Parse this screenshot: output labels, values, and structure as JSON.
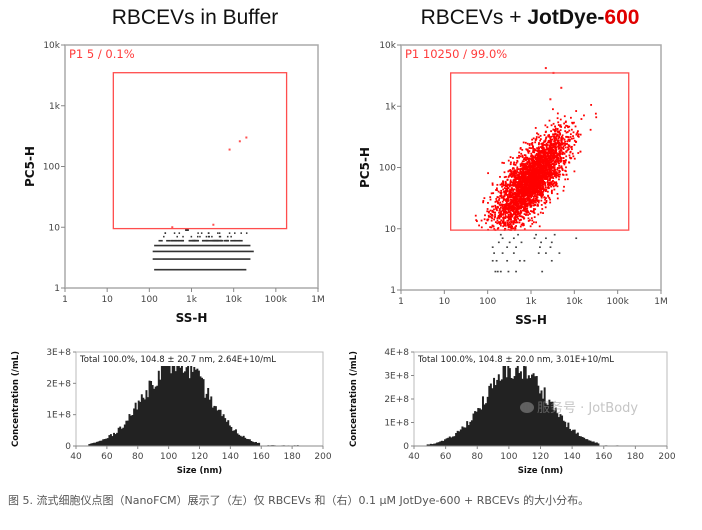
{
  "chart_data": [
    {
      "type": "scatter",
      "id": "left-scatter",
      "title": "RBCEVs in Buffer",
      "xlabel": "SS-H",
      "ylabel": "PC5-H",
      "xscale": "log",
      "yscale": "log",
      "xlim": [
        1,
        1000000
      ],
      "ylim": [
        1,
        10000
      ],
      "xticks": [
        "1",
        "10",
        "100",
        "1k",
        "10k",
        "100k",
        "1M"
      ],
      "xtick_values": [
        1,
        10,
        100,
        1000,
        10000,
        100000,
        1000000
      ],
      "yticks": [
        "1",
        "10",
        "100",
        "1k",
        "10k"
      ],
      "ytick_values": [
        1,
        10,
        100,
        1000,
        10000
      ],
      "gate": {
        "name": "P1",
        "label": "P1  5 / 0.1%",
        "x_range": [
          14,
          180000
        ],
        "y_range": [
          9.5,
          3500
        ],
        "color": "#ff4d4d"
      },
      "gated_points": [
        [
          8000,
          190
        ],
        [
          14000,
          260
        ],
        [
          20000,
          300
        ],
        [
          350,
          10
        ],
        [
          3300,
          11
        ]
      ],
      "ungated_rows": [
        {
          "y": 2,
          "x_range": [
            130,
            20000
          ],
          "density": "dense"
        },
        {
          "y": 3,
          "x_range": [
            120,
            25000
          ],
          "density": "dense"
        },
        {
          "y": 4,
          "x_range": [
            120,
            30000
          ],
          "density": "dense"
        },
        {
          "y": 5,
          "x_range": [
            130,
            25000
          ],
          "density": "dense"
        },
        {
          "y": 6,
          "x_range": [
            150,
            15000
          ],
          "density": "medium"
        },
        {
          "y": 7,
          "x_range": [
            200,
            10000
          ],
          "density": "sparse"
        },
        {
          "y": 8,
          "x_range": [
            150,
            20000
          ],
          "density": "sparse"
        },
        {
          "y": 9,
          "x_range": [
            700,
            800
          ],
          "density": "sparse"
        }
      ]
    },
    {
      "type": "scatter",
      "id": "right-scatter",
      "title": "RBCEVs + JotDye-600",
      "title_parts": {
        "plain": "RBCEVs + ",
        "bold": "JotDye-",
        "red": "600"
      },
      "xlabel": "SS-H",
      "ylabel": "PC5-H",
      "xscale": "log",
      "yscale": "log",
      "xlim": [
        1,
        1000000
      ],
      "ylim": [
        1,
        10000
      ],
      "xticks": [
        "1",
        "10",
        "100",
        "1k",
        "10k",
        "100k",
        "1M"
      ],
      "xtick_values": [
        1,
        10,
        100,
        1000,
        10000,
        100000,
        1000000
      ],
      "yticks": [
        "1",
        "10",
        "100",
        "1k",
        "10k"
      ],
      "ytick_values": [
        1,
        10,
        100,
        1000,
        10000
      ],
      "gate": {
        "name": "P1",
        "label": "P1  10250 / 99.0%",
        "x_range": [
          14,
          180000
        ],
        "y_range": [
          9.5,
          3500
        ],
        "color": "#ff4d4d"
      },
      "cluster": {
        "center_x": 1000,
        "center_y": 60,
        "log_sd_x": 0.42,
        "log_sd_y": 0.38,
        "correlation": 0.75,
        "count": 10250,
        "color": "#ff0000"
      },
      "outliers": [
        [
          3300,
          3500
        ],
        [
          5000,
          2000
        ],
        [
          2800,
          1300
        ],
        [
          2200,
          4200
        ]
      ],
      "ungated_points": [
        [
          150,
          2
        ],
        [
          170,
          2
        ],
        [
          200,
          2
        ],
        [
          300,
          2
        ],
        [
          450,
          2
        ],
        [
          1800,
          2
        ],
        [
          130,
          3
        ],
        [
          160,
          3
        ],
        [
          280,
          3
        ],
        [
          550,
          3
        ],
        [
          700,
          3
        ],
        [
          3000,
          3
        ],
        [
          140,
          4
        ],
        [
          220,
          4
        ],
        [
          400,
          4
        ],
        [
          1500,
          4
        ],
        [
          2200,
          4
        ],
        [
          4500,
          4
        ],
        [
          130,
          5
        ],
        [
          280,
          5
        ],
        [
          450,
          5
        ],
        [
          1600,
          5
        ],
        [
          2800,
          5
        ],
        [
          180,
          6
        ],
        [
          320,
          6
        ],
        [
          600,
          6
        ],
        [
          1700,
          6
        ],
        [
          3000,
          6
        ],
        [
          220,
          7
        ],
        [
          400,
          7
        ],
        [
          1200,
          7
        ],
        [
          2200,
          7
        ],
        [
          11000,
          7
        ],
        [
          200,
          8
        ],
        [
          500,
          8
        ],
        [
          1300,
          8
        ],
        [
          3500,
          8
        ]
      ]
    },
    {
      "type": "bar",
      "id": "left-histogram",
      "xlabel": "Size (nm)",
      "ylabel": "Concentration (/mL)",
      "xlim": [
        40,
        200
      ],
      "ylim": [
        0,
        300000000
      ],
      "xticks": [
        "40",
        "60",
        "80",
        "100",
        "120",
        "140",
        "160",
        "180",
        "200"
      ],
      "yticks": [
        "0",
        "1E+8",
        "2E+8",
        "3E+8"
      ],
      "ytick_values": [
        0,
        100000000,
        200000000,
        300000000
      ],
      "annotation": "Total  100.0%,  104.8 ± 20.7 nm,  2.64E+10/mL",
      "mean_nm": 104.8,
      "sd_nm": 20.7,
      "peak_concentration": 270000000,
      "x_range": [
        48,
        185
      ],
      "color": "#222222"
    },
    {
      "type": "bar",
      "id": "right-histogram",
      "xlabel": "Size (nm)",
      "ylabel": "Concentration (/mL)",
      "xlim": [
        40,
        200
      ],
      "ylim": [
        0,
        400000000
      ],
      "xticks": [
        "40",
        "60",
        "80",
        "100",
        "120",
        "140",
        "160",
        "180",
        "200"
      ],
      "yticks": [
        "0",
        "1E+8",
        "2E+8",
        "3E+8",
        "4E+8"
      ],
      "ytick_values": [
        0,
        100000000,
        200000000,
        300000000,
        400000000
      ],
      "annotation": "Total  100.0%,  104.8 ± 20.0 nm,  3.01E+10/mL",
      "mean_nm": 104.8,
      "sd_nm": 20.0,
      "peak_concentration": 330000000,
      "x_range": [
        48,
        175
      ],
      "color": "#222222"
    }
  ],
  "titles": {
    "left": "RBCEVs in Buffer",
    "right_plain": "RBCEVs + ",
    "right_bold": "JotDye-",
    "right_red": "600"
  },
  "watermark": "服务号 · JotBody",
  "caption": "图 5. 流式细胞仪点图（NanoFCM）展示了（左）仅 RBCEVs 和（右）0.1 μM JotDye-600 + RBCEVs 的大小分布。"
}
